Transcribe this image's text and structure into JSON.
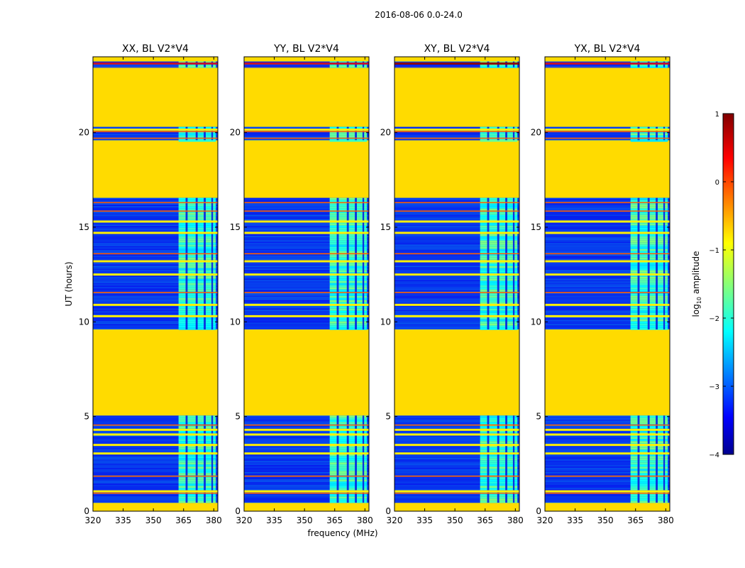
{
  "figure_title": "2016-08-06 0.0-24.0",
  "chart_data": {
    "type": "heatmap",
    "shared_xlabel": "frequency (MHz)",
    "shared_ylabel": "UT (hours)",
    "xlim": [
      320,
      382
    ],
    "ylim": [
      0,
      24
    ],
    "xticks": [
      320,
      335,
      350,
      365,
      380
    ],
    "xtick_labels": [
      "320",
      "335",
      "350",
      "365",
      "380"
    ],
    "yticks": [
      0,
      5,
      10,
      15,
      20
    ],
    "ytick_labels": [
      "0",
      "5",
      "10",
      "15",
      "20"
    ],
    "panels": [
      {
        "title": "XX, BL V2*V4"
      },
      {
        "title": "YY, BL V2*V4"
      },
      {
        "title": "XY, BL V2*V4"
      },
      {
        "title": "YX, BL V2*V4"
      }
    ],
    "colorbar": {
      "label_prefix": "log",
      "label_sub": "10",
      "label_suffix": " amplitude",
      "colormap": "jet",
      "vmin": -4,
      "vmax": 1,
      "ticks": [
        1,
        0,
        -1,
        -2,
        -3,
        -4
      ],
      "tick_labels": [
        "1",
        "0",
        "−1",
        "−2",
        "−3",
        "−4"
      ]
    },
    "flagged_fill_log10": -0.7,
    "flagged_ut_ranges": [
      [
        0.0,
        0.45
      ],
      [
        5.05,
        9.6
      ],
      [
        16.55,
        19.6
      ],
      [
        20.3,
        23.45
      ],
      [
        23.75,
        24.0
      ]
    ],
    "observed_ut_ranges": [
      [
        0.45,
        5.05
      ],
      [
        9.6,
        16.55
      ],
      [
        19.6,
        20.3
      ],
      [
        23.45,
        23.75
      ]
    ],
    "rfi_band_mhz": [
      362.5,
      381.0
    ],
    "rfi_gaps_mhz": [
      [
        366.0,
        367.0
      ],
      [
        371.0,
        372.0
      ],
      [
        375.0,
        376.0
      ],
      [
        378.8,
        379.6
      ]
    ],
    "orange_rows_ut": [
      0.95,
      1.85,
      4.55,
      11.55,
      13.6,
      15.85,
      16.3,
      19.7,
      20.05
    ],
    "green_rows_ut": [
      1.05,
      3.05,
      3.5,
      4.05,
      4.3,
      10.3,
      10.9,
      12.5,
      13.2,
      14.7,
      15.3,
      20.15
    ]
  }
}
